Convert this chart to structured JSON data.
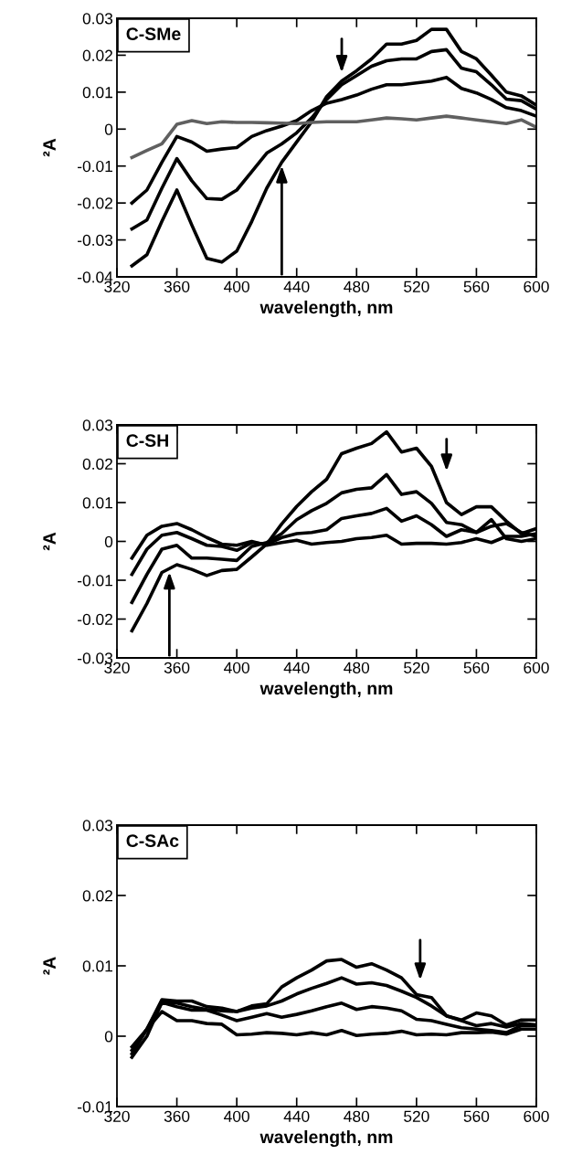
{
  "chart_data": [
    {
      "type": "line",
      "xlabel": "wavelength, nm",
      "ylabel": "²A",
      "annotations": [
        "C-SMe"
      ],
      "x": [
        330,
        340,
        350,
        360,
        370,
        380,
        390,
        400,
        410,
        420,
        430,
        440,
        450,
        460,
        470,
        480,
        490,
        500,
        510,
        520,
        530,
        540,
        550,
        560,
        570,
        580,
        590,
        600
      ],
      "xlim": [
        320,
        600
      ],
      "xticks": [
        320,
        360,
        400,
        440,
        480,
        520,
        560,
        600
      ],
      "ylim": [
        -0.04,
        0.03
      ],
      "yticks": [
        -0.04,
        -0.03,
        -0.02,
        -0.01,
        0,
        0.01,
        0.02,
        0.03
      ],
      "grid": false,
      "legend": false,
      "series": [
        {
          "color": "#000000",
          "values": [
            -0.037,
            -0.034,
            -0.025,
            -0.0165,
            -0.026,
            -0.035,
            -0.036,
            -0.033,
            -0.025,
            -0.016,
            -0.009,
            -0.0035,
            0.002,
            0.0088,
            0.013,
            0.0158,
            0.019,
            0.023,
            0.023,
            0.024,
            0.027,
            0.027,
            0.021,
            0.019,
            0.0146,
            0.01,
            0.009,
            0.0065
          ]
        },
        {
          "color": "#000000",
          "values": [
            -0.027,
            -0.0246,
            -0.016,
            -0.008,
            -0.014,
            -0.0188,
            -0.019,
            -0.0165,
            -0.0115,
            -0.0065,
            -0.004,
            -0.001,
            0.003,
            0.008,
            0.012,
            0.0145,
            0.017,
            0.0185,
            0.019,
            0.019,
            0.021,
            0.0215,
            0.0165,
            0.0155,
            0.012,
            0.0081,
            0.0077,
            0.0054
          ]
        },
        {
          "color": "#000000",
          "values": [
            -0.02,
            -0.0165,
            -0.009,
            -0.002,
            -0.0035,
            -0.006,
            -0.0054,
            -0.005,
            -0.002,
            -0.0004,
            0.0008,
            0.0023,
            0.005,
            0.007,
            0.008,
            0.0092,
            0.0108,
            0.012,
            0.012,
            0.0125,
            0.013,
            0.014,
            0.011,
            0.0098,
            0.008,
            0.0058,
            0.005,
            0.0035
          ]
        },
        {
          "color": "#606060",
          "values": [
            -0.0077,
            -0.0058,
            -0.004,
            0.0013,
            0.0023,
            0.0015,
            0.002,
            0.0018,
            0.0018,
            0.0017,
            0.0016,
            0.0015,
            0.0018,
            0.002,
            0.002,
            0.002,
            0.0025,
            0.003,
            0.0028,
            0.0025,
            0.003,
            0.0035,
            0.003,
            0.0025,
            0.002,
            0.0015,
            0.0025,
            0.0005
          ]
        }
      ]
    },
    {
      "type": "line",
      "xlabel": "wavelength, nm",
      "ylabel": "²A",
      "annotations": [
        "C-SH"
      ],
      "x": [
        330,
        340,
        350,
        360,
        370,
        380,
        390,
        400,
        410,
        420,
        430,
        440,
        450,
        460,
        470,
        480,
        490,
        500,
        510,
        520,
        530,
        540,
        550,
        560,
        570,
        580,
        590,
        600
      ],
      "xlim": [
        320,
        600
      ],
      "xticks": [
        320,
        360,
        400,
        440,
        480,
        520,
        560,
        600
      ],
      "ylim": [
        -0.03,
        0.03
      ],
      "yticks": [
        -0.03,
        -0.02,
        -0.01,
        0,
        0.01,
        0.02,
        0.03
      ],
      "grid": false,
      "legend": false,
      "series": [
        {
          "color": "#000000",
          "values": [
            -0.023,
            -0.016,
            -0.008,
            -0.006,
            -0.0072,
            -0.0088,
            -0.0075,
            -0.0072,
            -0.004,
            -0.0007,
            0.0045,
            0.009,
            0.0128,
            0.016,
            0.0226,
            0.024,
            0.0252,
            0.0282,
            0.023,
            0.024,
            0.0193,
            0.01,
            0.0069,
            0.0089,
            0.0089,
            0.0052,
            0.002,
            0.0033
          ]
        },
        {
          "color": "#000000",
          "values": [
            -0.0157,
            -0.0085,
            -0.002,
            -0.001,
            -0.0043,
            -0.0043,
            -0.0046,
            -0.0049,
            -0.0013,
            -0.0003,
            0.002,
            0.0056,
            0.0079,
            0.0098,
            0.0125,
            0.0134,
            0.0138,
            0.0172,
            0.0121,
            0.0128,
            0.0098,
            0.0049,
            0.0043,
            0.0023,
            0.0039,
            0.0046,
            0.0023,
            0.0013
          ]
        },
        {
          "color": "#000000",
          "values": [
            -0.0085,
            -0.002,
            0.0016,
            0.0023,
            0.0007,
            -0.001,
            -0.0013,
            -0.0023,
            -0.0003,
            -0.0007,
            0.001,
            0.002,
            0.0023,
            0.003,
            0.0059,
            0.0066,
            0.0072,
            0.0085,
            0.0052,
            0.0066,
            0.0043,
            0.0013,
            0.003,
            0.0023,
            0.0056,
            0.0007,
            0,
            0.0007
          ]
        },
        {
          "color": "#000000",
          "values": [
            -0.0043,
            0.0016,
            0.0039,
            0.0046,
            0.003,
            0.001,
            -0.0007,
            -0.001,
            0,
            -0.001,
            -0.0003,
            0.0003,
            -0.0007,
            -0.0003,
            0,
            0.0007,
            0.001,
            0.0016,
            -0.0007,
            -0.0005,
            -0.0005,
            -0.0007,
            -0.0003,
            0.0007,
            -0.0003,
            0.0013,
            0.0013,
            0.002
          ]
        }
      ]
    },
    {
      "type": "line",
      "xlabel": "wavelength, nm",
      "ylabel": "²A",
      "annotations": [
        "C-SAc"
      ],
      "x": [
        330,
        340,
        350,
        360,
        370,
        380,
        390,
        400,
        410,
        420,
        430,
        440,
        450,
        460,
        470,
        480,
        490,
        500,
        510,
        520,
        530,
        540,
        550,
        560,
        570,
        580,
        590,
        600
      ],
      "xlim": [
        320,
        600
      ],
      "xticks": [
        320,
        360,
        400,
        440,
        480,
        520,
        560,
        600
      ],
      "ylim": [
        -0.01,
        0.03
      ],
      "yticks": [
        -0.01,
        0,
        0.01,
        0.02,
        0.03
      ],
      "grid": false,
      "legend": false,
      "series": [
        {
          "color": "#000000",
          "values": [
            -0.0025,
            0.001,
            0.0052,
            0.005,
            0.005,
            0.0042,
            0.004,
            0.0035,
            0.0043,
            0.0046,
            0.007,
            0.0083,
            0.0094,
            0.0107,
            0.0109,
            0.0098,
            0.0103,
            0.0094,
            0.0083,
            0.0059,
            0.0055,
            0.0029,
            0.0023,
            0.0033,
            0.0029,
            0.0016,
            0.0023,
            0.0023
          ]
        },
        {
          "color": "#000000",
          "values": [
            -0.002,
            0.001,
            0.0048,
            0.0047,
            0.0042,
            0.0038,
            0.0036,
            0.0035,
            0.004,
            0.0043,
            0.005,
            0.006,
            0.0068,
            0.0075,
            0.0083,
            0.0074,
            0.0076,
            0.0072,
            0.0064,
            0.0055,
            0.0043,
            0.0029,
            0.0022,
            0.0015,
            0.0018,
            0.0013,
            0.0018,
            0.0016
          ]
        },
        {
          "color": "#000000",
          "values": [
            -0.003,
            0,
            0.0048,
            0.0042,
            0.0037,
            0.0037,
            0.003,
            0.0022,
            0.0027,
            0.0032,
            0.0027,
            0.0031,
            0.0036,
            0.0042,
            0.0047,
            0.0038,
            0.0042,
            0.004,
            0.0036,
            0.0024,
            0.0022,
            0.0017,
            0.0012,
            0.001,
            0.0008,
            0.0005,
            0.0015,
            0.0015
          ]
        },
        {
          "color": "#000000",
          "values": [
            -0.0015,
            0.001,
            0.0035,
            0.0022,
            0.0022,
            0.0018,
            0.0017,
            0.0002,
            0.0003,
            0.0005,
            0.0004,
            0.0002,
            0.0005,
            0.0002,
            0.0008,
            0.0001,
            0.0003,
            0.0004,
            0.0007,
            0.0002,
            0.0003,
            0.0002,
            0.0005,
            0.0005,
            0.0006,
            0.0003,
            0.001,
            0.001
          ]
        }
      ]
    }
  ]
}
